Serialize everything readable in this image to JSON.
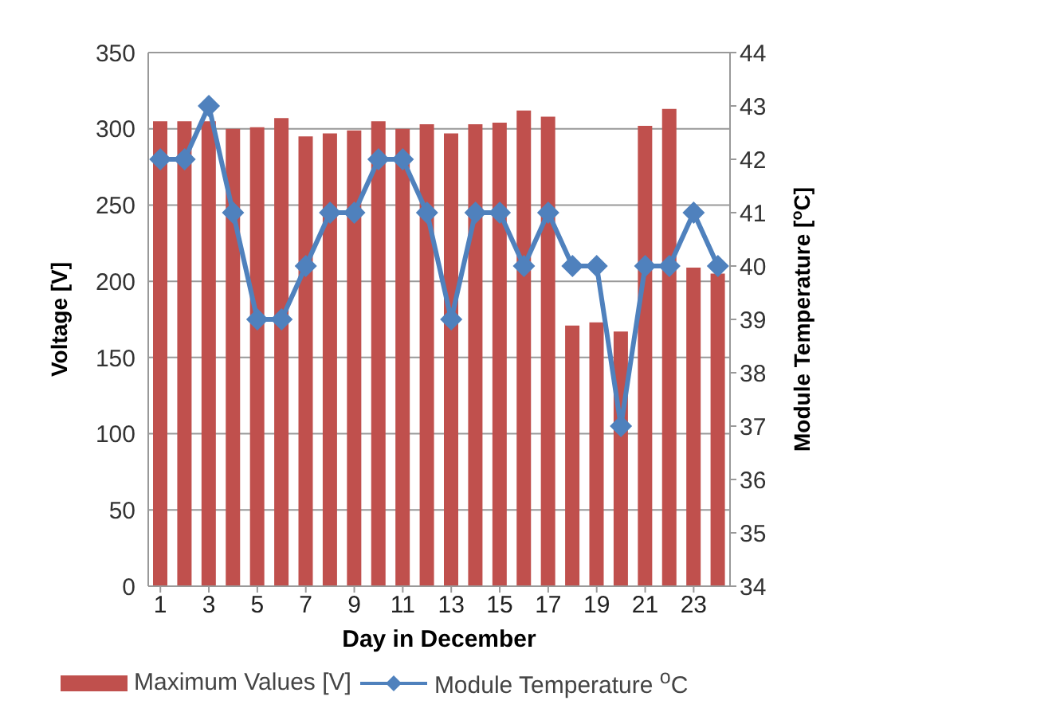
{
  "chart_data": {
    "type": "bar",
    "xlabel": "Day in December",
    "ylabel": "Voltage  [V]",
    "y2label": "Module Temperature [$^{o}$C]",
    "x": [
      1,
      2,
      3,
      4,
      5,
      6,
      7,
      8,
      9,
      10,
      11,
      12,
      13,
      14,
      15,
      16,
      17,
      18,
      19,
      20,
      21,
      22,
      23,
      24
    ],
    "xlim": [
      0.5,
      24.5
    ],
    "xticks": [
      1,
      3,
      5,
      7,
      9,
      11,
      13,
      15,
      17,
      19,
      21,
      23
    ],
    "series": [
      {
        "name": "Maximum Values  [V]",
        "color": "#c0504d",
        "values": [
          305,
          305,
          305,
          300,
          301,
          307,
          295,
          297,
          299,
          305,
          300,
          303,
          297,
          303,
          304,
          312,
          308,
          171,
          173,
          167,
          302,
          313,
          209,
          205
        ]
      },
      {
        "name": "Module Temperature $^{o}$C",
        "type": "line",
        "axis": "y2",
        "color": "#4f81bd",
        "marker": "diamond",
        "values": [
          42,
          42,
          43,
          41,
          39,
          39,
          40,
          41,
          41,
          42,
          42,
          41,
          39,
          41,
          41,
          40,
          41,
          40,
          40,
          37,
          40,
          40,
          41,
          40
        ]
      }
    ],
    "ylim": [
      0,
      350
    ],
    "yticks": [
      0,
      50,
      100,
      150,
      200,
      250,
      300,
      350
    ],
    "y2lim": [
      34,
      44
    ],
    "y2ticks": [
      34,
      35,
      36,
      37,
      38,
      39,
      40,
      41,
      42,
      43,
      44
    ],
    "grid": "y",
    "legend": "bottom"
  }
}
